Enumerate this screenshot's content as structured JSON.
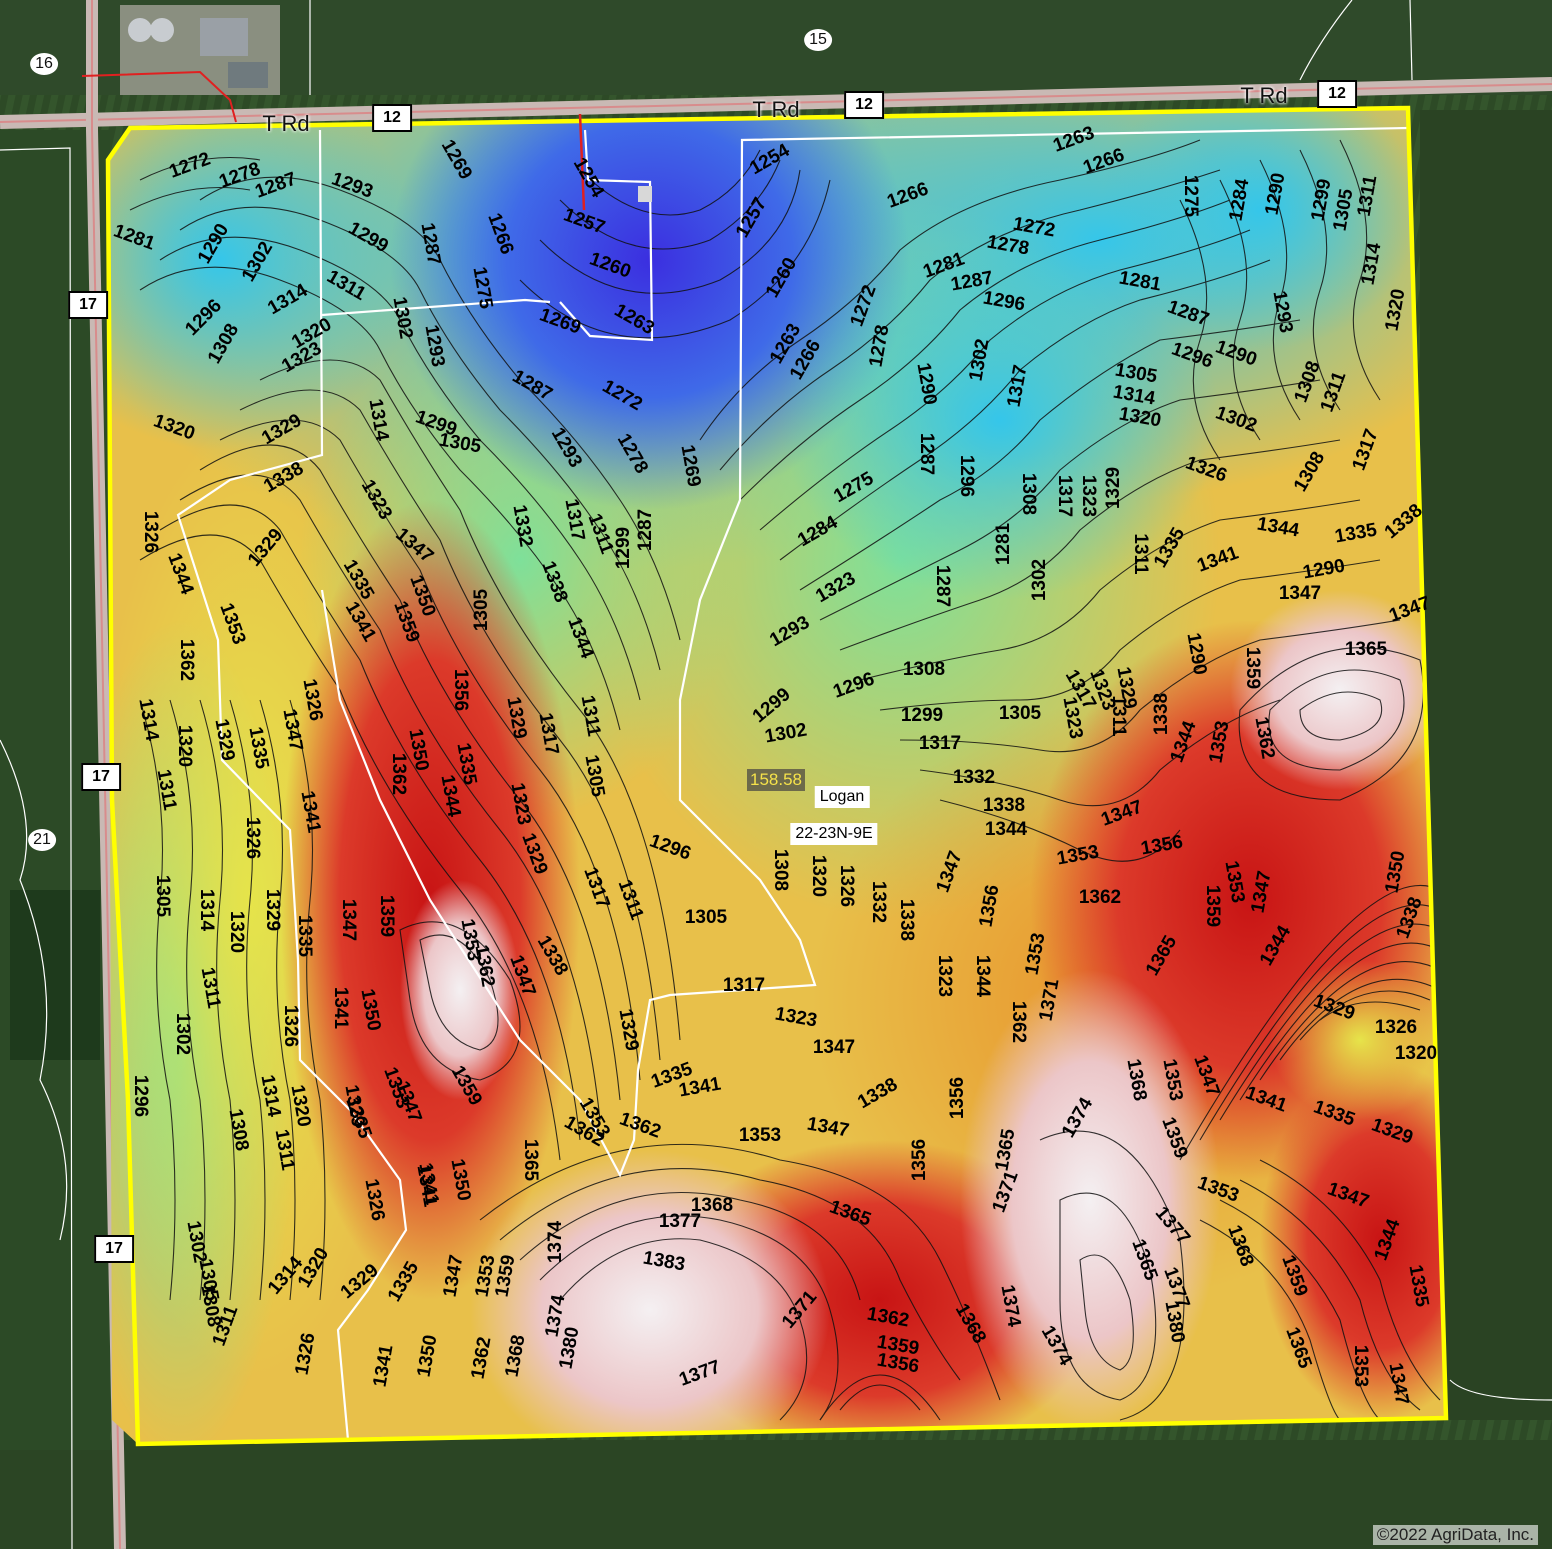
{
  "map": {
    "section_labels": [
      {
        "id": "sec-16",
        "text": "16"
      },
      {
        "id": "sec-15",
        "text": "15"
      },
      {
        "id": "sec-21",
        "text": "21"
      }
    ],
    "road_names": [
      "T Rd",
      "T Rd",
      "T Rd"
    ],
    "road_shields": [
      "12",
      "12",
      "12",
      "17",
      "17",
      "17"
    ],
    "acreage": "158.58",
    "township": "Logan",
    "legal": "22-23N-9E",
    "copyright": "©2022 AgriData, Inc.",
    "boundary_color": "#ffff00",
    "elevation_colors": {
      "low": "#3c32e0",
      "mid_low": "#30c8e8",
      "mid": "#e8e84a",
      "mid_high": "#e8902a",
      "high": "#d42020",
      "peak": "#f0e8ec"
    }
  },
  "contour_labels": [
    {
      "t": "1272"
    },
    {
      "t": "1278"
    },
    {
      "t": "1287"
    },
    {
      "t": "1293"
    },
    {
      "t": "1269"
    },
    {
      "t": "1254"
    },
    {
      "t": "1254"
    },
    {
      "t": "1263"
    },
    {
      "t": "1266"
    },
    {
      "t": "1281"
    },
    {
      "t": "1290"
    },
    {
      "t": "1302"
    },
    {
      "t": "1299"
    },
    {
      "t": "1287"
    },
    {
      "t": "1266"
    },
    {
      "t": "1257"
    },
    {
      "t": "1257"
    },
    {
      "t": "1266"
    },
    {
      "t": "1272"
    },
    {
      "t": "1278"
    },
    {
      "t": "1275"
    },
    {
      "t": "1284"
    },
    {
      "t": "1290"
    },
    {
      "t": "1299"
    },
    {
      "t": "1305"
    },
    {
      "t": "1311"
    },
    {
      "t": "1296"
    },
    {
      "t": "1314"
    },
    {
      "t": "1311"
    },
    {
      "t": "1302"
    },
    {
      "t": "1275"
    },
    {
      "t": "1260"
    },
    {
      "t": "1260"
    },
    {
      "t": "1281"
    },
    {
      "t": "1287"
    },
    {
      "t": "1281"
    },
    {
      "t": "1287"
    },
    {
      "t": "1293"
    },
    {
      "t": "1314"
    },
    {
      "t": "1320"
    },
    {
      "t": "1308"
    },
    {
      "t": "1320"
    },
    {
      "t": "1323"
    },
    {
      "t": "1293"
    },
    {
      "t": "1269"
    },
    {
      "t": "1263"
    },
    {
      "t": "1272"
    },
    {
      "t": "1263"
    },
    {
      "t": "1266"
    },
    {
      "t": "1278"
    },
    {
      "t": "1296"
    },
    {
      "t": "1302"
    },
    {
      "t": "1290"
    },
    {
      "t": "1296"
    },
    {
      "t": "1308"
    },
    {
      "t": "1320"
    },
    {
      "t": "1329"
    },
    {
      "t": "1314"
    },
    {
      "t": "1299"
    },
    {
      "t": "1305"
    },
    {
      "t": "1287"
    },
    {
      "t": "1272"
    },
    {
      "t": "1290"
    },
    {
      "t": "1287"
    },
    {
      "t": "1317"
    },
    {
      "t": "1305"
    },
    {
      "t": "1314"
    },
    {
      "t": "1320"
    },
    {
      "t": "1302"
    },
    {
      "t": "1311"
    },
    {
      "t": "1338"
    },
    {
      "t": "1323"
    },
    {
      "t": "1293"
    },
    {
      "t": "1278"
    },
    {
      "t": "1269"
    },
    {
      "t": "1275"
    },
    {
      "t": "1296"
    },
    {
      "t": "1308"
    },
    {
      "t": "1317"
    },
    {
      "t": "1323"
    },
    {
      "t": "1329"
    },
    {
      "t": "1326"
    },
    {
      "t": "1308"
    },
    {
      "t": "1317"
    },
    {
      "t": "1326"
    },
    {
      "t": "1329"
    },
    {
      "t": "1347"
    },
    {
      "t": "1332"
    },
    {
      "t": "1317"
    },
    {
      "t": "1311"
    },
    {
      "t": "1299"
    },
    {
      "t": "1287"
    },
    {
      "t": "1284"
    },
    {
      "t": "1281"
    },
    {
      "t": "1302"
    },
    {
      "t": "1311"
    },
    {
      "t": "1335"
    },
    {
      "t": "1341"
    },
    {
      "t": "1344"
    },
    {
      "t": "1335"
    },
    {
      "t": "1338"
    },
    {
      "t": "1344"
    },
    {
      "t": "1335"
    },
    {
      "t": "1350"
    },
    {
      "t": "1338"
    },
    {
      "t": "1305"
    },
    {
      "t": "1323"
    },
    {
      "t": "1287"
    },
    {
      "t": "1290"
    },
    {
      "t": "1347"
    },
    {
      "t": "1353"
    },
    {
      "t": "1341"
    },
    {
      "t": "1359"
    },
    {
      "t": "1344"
    },
    {
      "t": "1293"
    },
    {
      "t": "1290"
    },
    {
      "t": "1347"
    },
    {
      "t": "1362"
    },
    {
      "t": "1326"
    },
    {
      "t": "1356"
    },
    {
      "t": "1329"
    },
    {
      "t": "1317"
    },
    {
      "t": "1311"
    },
    {
      "t": "1299"
    },
    {
      "t": "1296"
    },
    {
      "t": "1308"
    },
    {
      "t": "1299"
    },
    {
      "t": "1305"
    },
    {
      "t": "1317"
    },
    {
      "t": "1323"
    },
    {
      "t": "1329"
    },
    {
      "t": "1359"
    },
    {
      "t": "1365"
    },
    {
      "t": "1314"
    },
    {
      "t": "1320"
    },
    {
      "t": "1329"
    },
    {
      "t": "1347"
    },
    {
      "t": "1350"
    },
    {
      "t": "1335"
    },
    {
      "t": "1305"
    },
    {
      "t": "1302"
    },
    {
      "t": "1317"
    },
    {
      "t": "1323"
    },
    {
      "t": "1311"
    },
    {
      "t": "1338"
    },
    {
      "t": "1344"
    },
    {
      "t": "1353"
    },
    {
      "t": "1362"
    },
    {
      "t": "1311"
    },
    {
      "t": "1335"
    },
    {
      "t": "1341"
    },
    {
      "t": "1362"
    },
    {
      "t": "1344"
    },
    {
      "t": "1323"
    },
    {
      "t": "1332"
    },
    {
      "t": "1338"
    },
    {
      "t": "1344"
    },
    {
      "t": "1347"
    },
    {
      "t": "1326"
    },
    {
      "t": "1296"
    },
    {
      "t": "1308"
    },
    {
      "t": "1320"
    },
    {
      "t": "1326"
    },
    {
      "t": "1332"
    },
    {
      "t": "1338"
    },
    {
      "t": "1353"
    },
    {
      "t": "1356"
    },
    {
      "t": "1305"
    },
    {
      "t": "1314"
    },
    {
      "t": "1320"
    },
    {
      "t": "1329"
    },
    {
      "t": "1347"
    },
    {
      "t": "1359"
    },
    {
      "t": "1329"
    },
    {
      "t": "1317"
    },
    {
      "t": "1311"
    },
    {
      "t": "1347"
    },
    {
      "t": "1356"
    },
    {
      "t": "1362"
    },
    {
      "t": "1353"
    },
    {
      "t": "1347"
    },
    {
      "t": "1350"
    },
    {
      "t": "1311"
    },
    {
      "t": "1335"
    },
    {
      "t": "1353"
    },
    {
      "t": "1362"
    },
    {
      "t": "1347"
    },
    {
      "t": "1338"
    },
    {
      "t": "1305"
    },
    {
      "t": "1323"
    },
    {
      "t": "1344"
    },
    {
      "t": "1353"
    },
    {
      "t": "1365"
    },
    {
      "t": "1359"
    },
    {
      "t": "1344"
    },
    {
      "t": "1338"
    },
    {
      "t": "1302"
    },
    {
      "t": "1326"
    },
    {
      "t": "1341"
    },
    {
      "t": "1350"
    },
    {
      "t": "1317"
    },
    {
      "t": "1323"
    },
    {
      "t": "1362"
    },
    {
      "t": "1371"
    },
    {
      "t": "1329"
    },
    {
      "t": "1326"
    },
    {
      "t": "1296"
    },
    {
      "t": "1314"
    },
    {
      "t": "1329"
    },
    {
      "t": "1353"
    },
    {
      "t": "1347"
    },
    {
      "t": "1359"
    },
    {
      "t": "1329"
    },
    {
      "t": "1335"
    },
    {
      "t": "1341"
    },
    {
      "t": "1347"
    },
    {
      "t": "1338"
    },
    {
      "t": "1356"
    },
    {
      "t": "1368"
    },
    {
      "t": "1353"
    },
    {
      "t": "1347"
    },
    {
      "t": "1341"
    },
    {
      "t": "1335"
    },
    {
      "t": "1329"
    },
    {
      "t": "1320"
    },
    {
      "t": "1308"
    },
    {
      "t": "1311"
    },
    {
      "t": "1320"
    },
    {
      "t": "1335"
    },
    {
      "t": "1365"
    },
    {
      "t": "1353"
    },
    {
      "t": "1362"
    },
    {
      "t": "1341"
    },
    {
      "t": "1353"
    },
    {
      "t": "1347"
    },
    {
      "t": "1356"
    },
    {
      "t": "1365"
    },
    {
      "t": "1374"
    },
    {
      "t": "1359"
    },
    {
      "t": "1353"
    },
    {
      "t": "1326"
    },
    {
      "t": "1341"
    },
    {
      "t": "1350"
    },
    {
      "t": "1362"
    },
    {
      "t": "1368"
    },
    {
      "t": "1365"
    },
    {
      "t": "1371"
    },
    {
      "t": "1365"
    },
    {
      "t": "1347"
    },
    {
      "t": "1302"
    },
    {
      "t": "1305"
    },
    {
      "t": "1314"
    },
    {
      "t": "1320"
    },
    {
      "t": "1329"
    },
    {
      "t": "1335"
    },
    {
      "t": "1347"
    },
    {
      "t": "1353"
    },
    {
      "t": "1359"
    },
    {
      "t": "1374"
    },
    {
      "t": "1377"
    },
    {
      "t": "1383"
    },
    {
      "t": "1374"
    },
    {
      "t": "1377"
    },
    {
      "t": "1368"
    },
    {
      "t": "1344"
    },
    {
      "t": "1308"
    },
    {
      "t": "1311"
    },
    {
      "t": "1326"
    },
    {
      "t": "1341"
    },
    {
      "t": "1350"
    },
    {
      "t": "1362"
    },
    {
      "t": "1368"
    },
    {
      "t": "1374"
    },
    {
      "t": "1380"
    },
    {
      "t": "1377"
    },
    {
      "t": "1371"
    },
    {
      "t": "1362"
    },
    {
      "t": "1359"
    },
    {
      "t": "1356"
    },
    {
      "t": "1368"
    },
    {
      "t": "1374"
    },
    {
      "t": "1377"
    },
    {
      "t": "1380"
    },
    {
      "t": "1359"
    },
    {
      "t": "1365"
    },
    {
      "t": "1353"
    },
    {
      "t": "1347"
    },
    {
      "t": "1335"
    }
  ]
}
